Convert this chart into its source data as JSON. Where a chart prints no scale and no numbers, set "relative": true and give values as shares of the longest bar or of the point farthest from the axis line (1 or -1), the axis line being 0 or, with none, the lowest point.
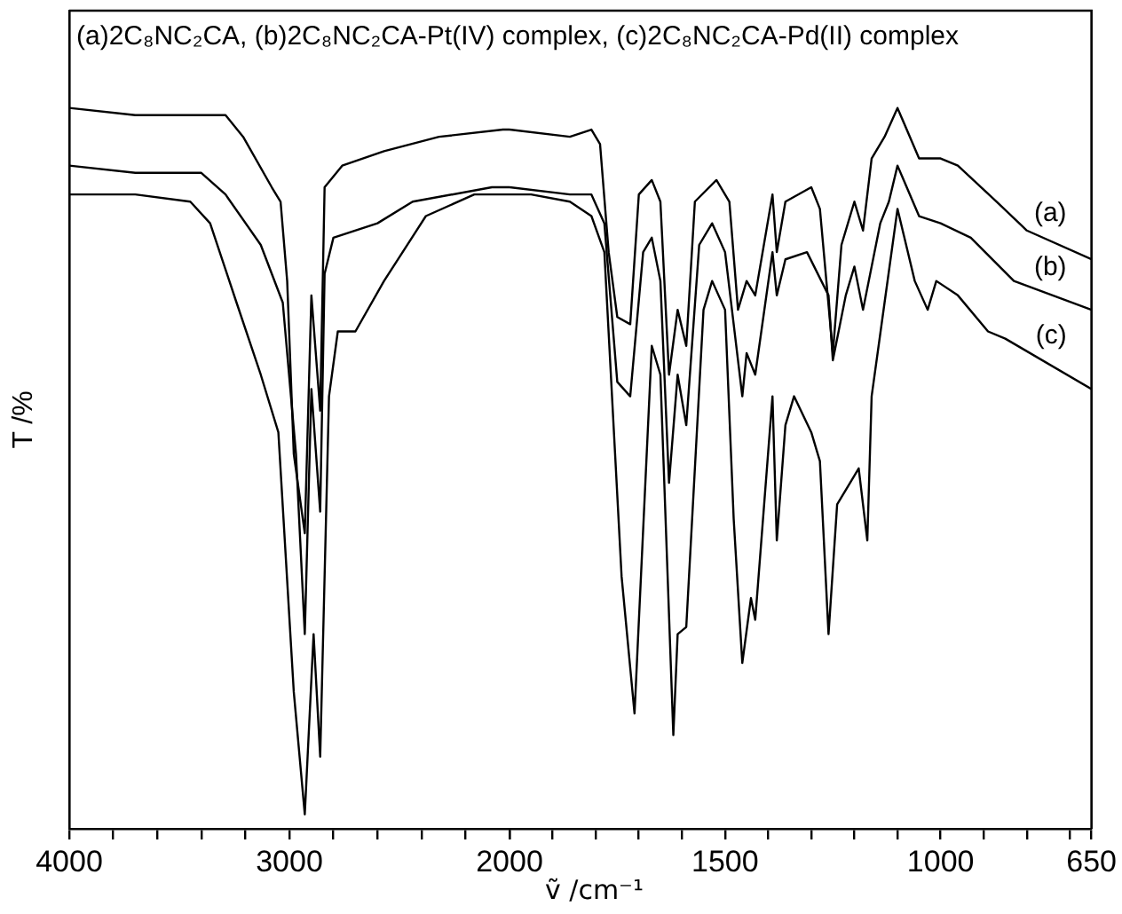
{
  "chart_data": [
    {
      "type": "line",
      "title": "(a)2C₈NC₂CA, (b)2C₈NC₂CA-Pt(IV) complex, (c)2C₈NC₂CA-Pd(II) complex",
      "ylabel": "T /%",
      "relative": true,
      "marker": "none",
      "xlim": [
        4000,
        2000
      ],
      "xticks": [
        4000,
        {
          "value": 3800,
          "label": null
        },
        {
          "value": 3600,
          "label": null
        },
        {
          "value": 3400,
          "label": null
        },
        {
          "value": 3200,
          "label": null
        },
        3000,
        {
          "value": 2800,
          "label": null
        },
        {
          "value": 2600,
          "label": null
        },
        {
          "value": 2400,
          "label": null
        },
        {
          "value": 2200,
          "label": null
        },
        2000
      ],
      "series": [
        {
          "color": "#000000",
          "x": [
            4000,
            3700,
            3450,
            3370,
            3290,
            3210,
            3080,
            3040,
            3010,
            2980,
            2930,
            2900,
            2860,
            2840,
            2760,
            2570,
            2320,
            2030,
            2000
          ],
          "values": [
            1,
            0.99,
            0.99,
            0.99,
            0.99,
            0.96,
            0.89,
            0.87,
            0.76,
            0.52,
            0.41,
            0.74,
            0.58,
            0.89,
            0.92,
            0.94,
            0.96,
            0.97,
            0.97
          ]
        },
        {
          "color": "#000000",
          "x": [
            4000,
            3700,
            3400,
            3290,
            3130,
            3030,
            2970,
            2930,
            2900,
            2860,
            2840,
            2800,
            2600,
            2440,
            2080,
            2000
          ],
          "values": [
            0.92,
            0.91,
            0.91,
            0.88,
            0.81,
            0.73,
            0.52,
            0.27,
            0.61,
            0.44,
            0.77,
            0.82,
            0.84,
            0.87,
            0.89,
            0.89
          ]
        },
        {
          "color": "#000000",
          "x": [
            4000,
            3700,
            3450,
            3360,
            3240,
            3130,
            3050,
            2980,
            2930,
            2890,
            2860,
            2820,
            2780,
            2700,
            2570,
            2380,
            2160,
            2000
          ],
          "values": [
            0.88,
            0.88,
            0.87,
            0.84,
            0.73,
            0.63,
            0.55,
            0.19,
            0.02,
            0.27,
            0.1,
            0.6,
            0.69,
            0.69,
            0.76,
            0.85,
            0.88,
            0.88
          ]
        }
      ]
    },
    {
      "type": "line",
      "xlabel": "ṽ /cm⁻¹",
      "relative": true,
      "marker": "none",
      "xlim": [
        2000,
        650
      ],
      "xticks": [
        {
          "value": 2000,
          "label": null
        },
        {
          "value": 1900,
          "label": null
        },
        {
          "value": 1800,
          "label": null
        },
        {
          "value": 1700,
          "label": null
        },
        {
          "value": 1600,
          "label": null
        },
        1500,
        {
          "value": 1400,
          "label": null
        },
        {
          "value": 1300,
          "label": null
        },
        {
          "value": 1200,
          "label": null
        },
        {
          "value": 1100,
          "label": null
        },
        1000,
        {
          "value": 900,
          "label": null
        },
        {
          "value": 800,
          "label": null
        },
        {
          "value": 700,
          "label": null
        },
        650
      ],
      "series": [
        {
          "name": "(a)",
          "color": "#000000",
          "x": [
            2000,
            1860,
            1810,
            1790,
            1770,
            1750,
            1720,
            1700,
            1670,
            1650,
            1630,
            1610,
            1590,
            1570,
            1520,
            1490,
            1470,
            1450,
            1430,
            1390,
            1380,
            1360,
            1300,
            1280,
            1250,
            1230,
            1200,
            1180,
            1160,
            1130,
            1100,
            1050,
            1000,
            960,
            870,
            800,
            650
          ],
          "values": [
            0.97,
            0.96,
            0.97,
            0.95,
            0.8,
            0.71,
            0.7,
            0.88,
            0.9,
            0.87,
            0.63,
            0.72,
            0.67,
            0.87,
            0.9,
            0.87,
            0.72,
            0.76,
            0.74,
            0.88,
            0.8,
            0.87,
            0.89,
            0.86,
            0.66,
            0.81,
            0.87,
            0.83,
            0.93,
            0.96,
            1,
            0.93,
            0.93,
            0.92,
            0.87,
            0.83,
            0.79
          ]
        },
        {
          "name": "(b)",
          "color": "#000000",
          "x": [
            2000,
            1860,
            1810,
            1780,
            1750,
            1720,
            1690,
            1670,
            1650,
            1630,
            1610,
            1590,
            1560,
            1530,
            1500,
            1460,
            1450,
            1430,
            1390,
            1380,
            1360,
            1310,
            1260,
            1250,
            1220,
            1200,
            1180,
            1140,
            1120,
            1100,
            1050,
            1000,
            930,
            830,
            650
          ],
          "values": [
            0.89,
            0.88,
            0.88,
            0.84,
            0.62,
            0.6,
            0.8,
            0.82,
            0.76,
            0.48,
            0.63,
            0.56,
            0.81,
            0.84,
            0.8,
            0.6,
            0.66,
            0.63,
            0.8,
            0.74,
            0.79,
            0.8,
            0.74,
            0.65,
            0.74,
            0.78,
            0.72,
            0.84,
            0.87,
            0.92,
            0.85,
            0.84,
            0.82,
            0.76,
            0.72
          ]
        },
        {
          "name": "(c)",
          "color": "#000000",
          "x": [
            2000,
            1950,
            1860,
            1810,
            1780,
            1740,
            1710,
            1670,
            1650,
            1620,
            1610,
            1590,
            1550,
            1530,
            1500,
            1480,
            1460,
            1440,
            1430,
            1390,
            1380,
            1360,
            1340,
            1300,
            1280,
            1260,
            1240,
            1210,
            1190,
            1170,
            1160,
            1130,
            1100,
            1060,
            1030,
            1010,
            960,
            890,
            850,
            650
          ],
          "values": [
            0.88,
            0.88,
            0.87,
            0.85,
            0.8,
            0.35,
            0.16,
            0.67,
            0.63,
            0.13,
            0.27,
            0.28,
            0.72,
            0.76,
            0.72,
            0.43,
            0.23,
            0.32,
            0.29,
            0.6,
            0.4,
            0.56,
            0.6,
            0.55,
            0.51,
            0.27,
            0.45,
            0.48,
            0.5,
            0.4,
            0.6,
            0.73,
            0.86,
            0.76,
            0.72,
            0.76,
            0.74,
            0.69,
            0.68,
            0.61
          ]
        }
      ]
    }
  ]
}
